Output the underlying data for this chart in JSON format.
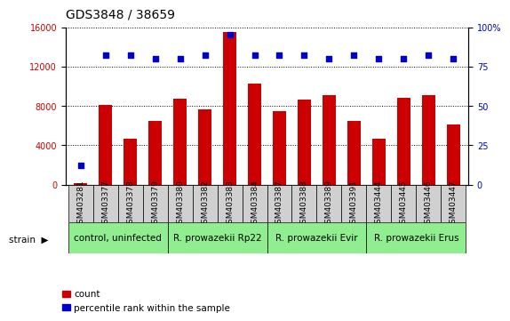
{
  "title": "GDS3848 / 38659",
  "samples": [
    "GSM403281",
    "GSM403377",
    "GSM403378",
    "GSM403379",
    "GSM403380",
    "GSM403382",
    "GSM403383",
    "GSM403384",
    "GSM403387",
    "GSM403388",
    "GSM403389",
    "GSM403391",
    "GSM403444",
    "GSM403445",
    "GSM403446",
    "GSM403447"
  ],
  "counts": [
    150,
    8100,
    4700,
    6500,
    8700,
    7600,
    15500,
    10300,
    7500,
    8600,
    9100,
    6500,
    4700,
    8800,
    9100,
    6100
  ],
  "percentiles": [
    12,
    82,
    82,
    80,
    80,
    82,
    95,
    82,
    82,
    82,
    80,
    82,
    80,
    80,
    82,
    80
  ],
  "groups": [
    {
      "label": "control, uninfected",
      "start": 0,
      "end": 3
    },
    {
      "label": "R. prowazekii Rp22",
      "start": 4,
      "end": 7
    },
    {
      "label": "R. prowazekii Evir",
      "start": 8,
      "end": 11
    },
    {
      "label": "R. prowazekii Erus",
      "start": 12,
      "end": 15
    }
  ],
  "bar_color": "#CC0000",
  "dot_color": "#0000CC",
  "ylim_left": [
    0,
    16000
  ],
  "ylim_right": [
    0,
    100
  ],
  "yticks_left": [
    0,
    4000,
    8000,
    12000,
    16000
  ],
  "yticks_right": [
    0,
    25,
    50,
    75,
    100
  ],
  "group_color": "#90EE90",
  "tick_box_color": "#d0d0d0",
  "bg_color": "#ffffff",
  "plot_bg": "#ffffff",
  "left_tick_color": "#CC0000",
  "right_tick_color": "#0000CC",
  "title_color": "#000000",
  "title_fontsize": 10,
  "tick_fontsize": 6.5,
  "group_fontsize": 7.5,
  "legend_fontsize": 7.5
}
